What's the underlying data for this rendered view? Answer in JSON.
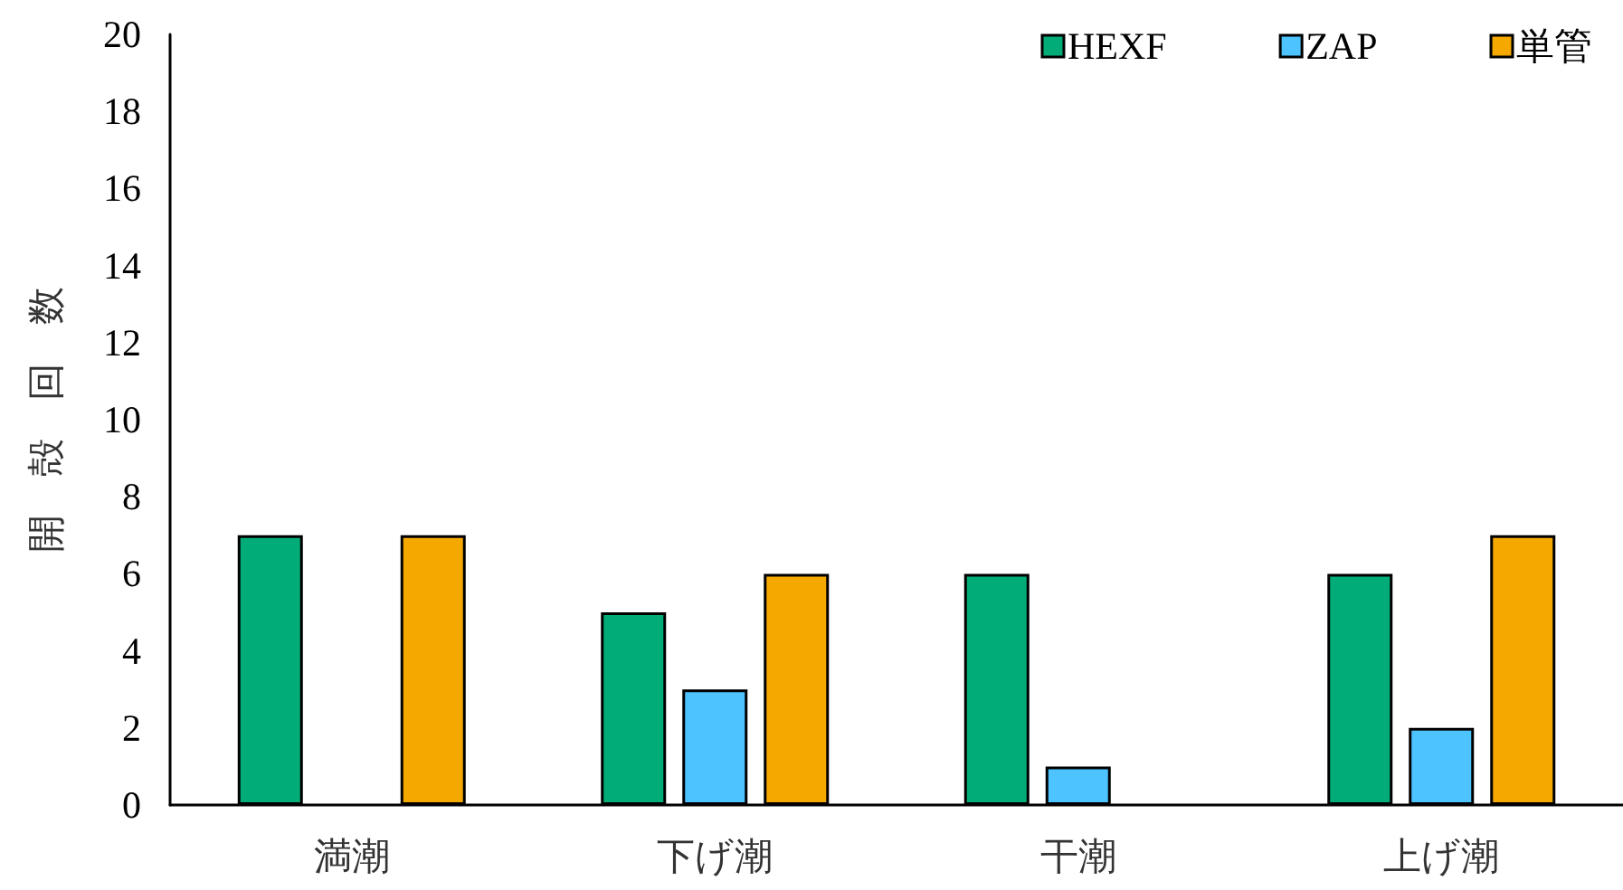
{
  "chart_data": {
    "type": "bar",
    "ylabel": "開　殻　回　数",
    "categories": [
      "満潮",
      "下げ潮",
      "干潮",
      "上げ潮"
    ],
    "series": [
      {
        "name": "HEXF",
        "color": "#02ac78",
        "values": [
          7,
          5,
          6,
          6
        ]
      },
      {
        "name": "ZAP",
        "color": "#4dc3ff",
        "values": [
          0,
          3,
          1,
          2
        ]
      },
      {
        "name": "単管",
        "color": "#f5a800",
        "values": [
          7,
          6,
          0,
          7
        ]
      }
    ],
    "ylim": [
      0,
      20
    ],
    "yticks": [
      0,
      2,
      4,
      6,
      8,
      10,
      12,
      14,
      16,
      18,
      20
    ],
    "legend": "top right"
  }
}
